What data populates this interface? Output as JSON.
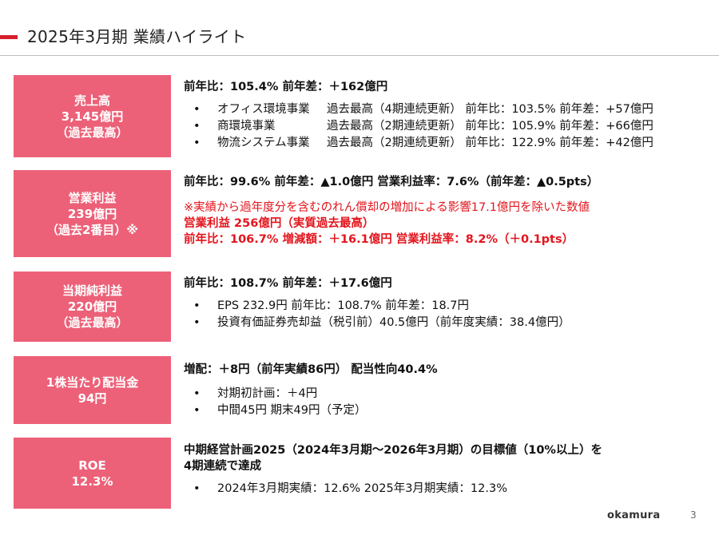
{
  "title": "2025年3月期 業績ハイライト",
  "sections": {
    "sales": {
      "box": [
        "売上高",
        "3,145億円",
        "（過去最高）"
      ],
      "headline": "前年比：105.4%  前年差：＋162億円",
      "items": [
        {
          "name": "オフィス環境事業",
          "detail": "過去最高（4期連続更新）  前年比：103.5%  前年差：+57億円"
        },
        {
          "name": "商環境事業",
          "detail": "過去最高（2期連続更新）  前年比：105.9%  前年差：+66億円"
        },
        {
          "name": "物流システム事業",
          "detail": "過去最高（2期連続更新）  前年比：122.9%  前年差：+42億円"
        }
      ]
    },
    "operating": {
      "box": [
        "営業利益",
        "239億円",
        "（過去2番目）※"
      ],
      "headline": "前年比：99.6%  前年差：▲1.0億円    営業利益率：7.6%（前年差：▲0.5pts）",
      "note": "※実績から過年度分を含むのれん償却の増加による影響17.1億円を除いた数値",
      "red1": "営業利益  256億円（実質過去最高）",
      "red2": "前年比：106.7%  増減額：＋16.1億円    営業利益率：8.2%（＋0.1pts）"
    },
    "net": {
      "box": [
        "当期純利益",
        "220億円",
        "（過去最高）"
      ],
      "headline": "前年比：108.7%  前年差：＋17.6億円",
      "items": [
        "EPS 232.9円  前年比：108.7%  前年差：18.7円",
        "投資有価証券売却益（税引前）40.5億円（前年度実績：38.4億円）"
      ]
    },
    "dividend": {
      "box": [
        "1株当たり配当金",
        "94円"
      ],
      "headline": "増配：＋8円（前年実績86円） 配当性向40.4%",
      "items": [
        "対期初計画：＋4円",
        "中間45円  期末49円（予定）"
      ]
    },
    "roe": {
      "box": [
        "ROE",
        "12.3%"
      ],
      "headline1": "中期経営計画2025（2024年3月期～2026年3月期）の目標値（10%以上）を",
      "headline2": "4期連続で達成",
      "items": [
        "2024年3月期実績：12.6%  2025年3月期実績：12.3%"
      ]
    }
  },
  "footer": {
    "logo": "okamura",
    "page": "3"
  },
  "colors": {
    "accent_red": "#d6202e",
    "box_pink": "#ec6178",
    "text_red": "#e3151d"
  }
}
